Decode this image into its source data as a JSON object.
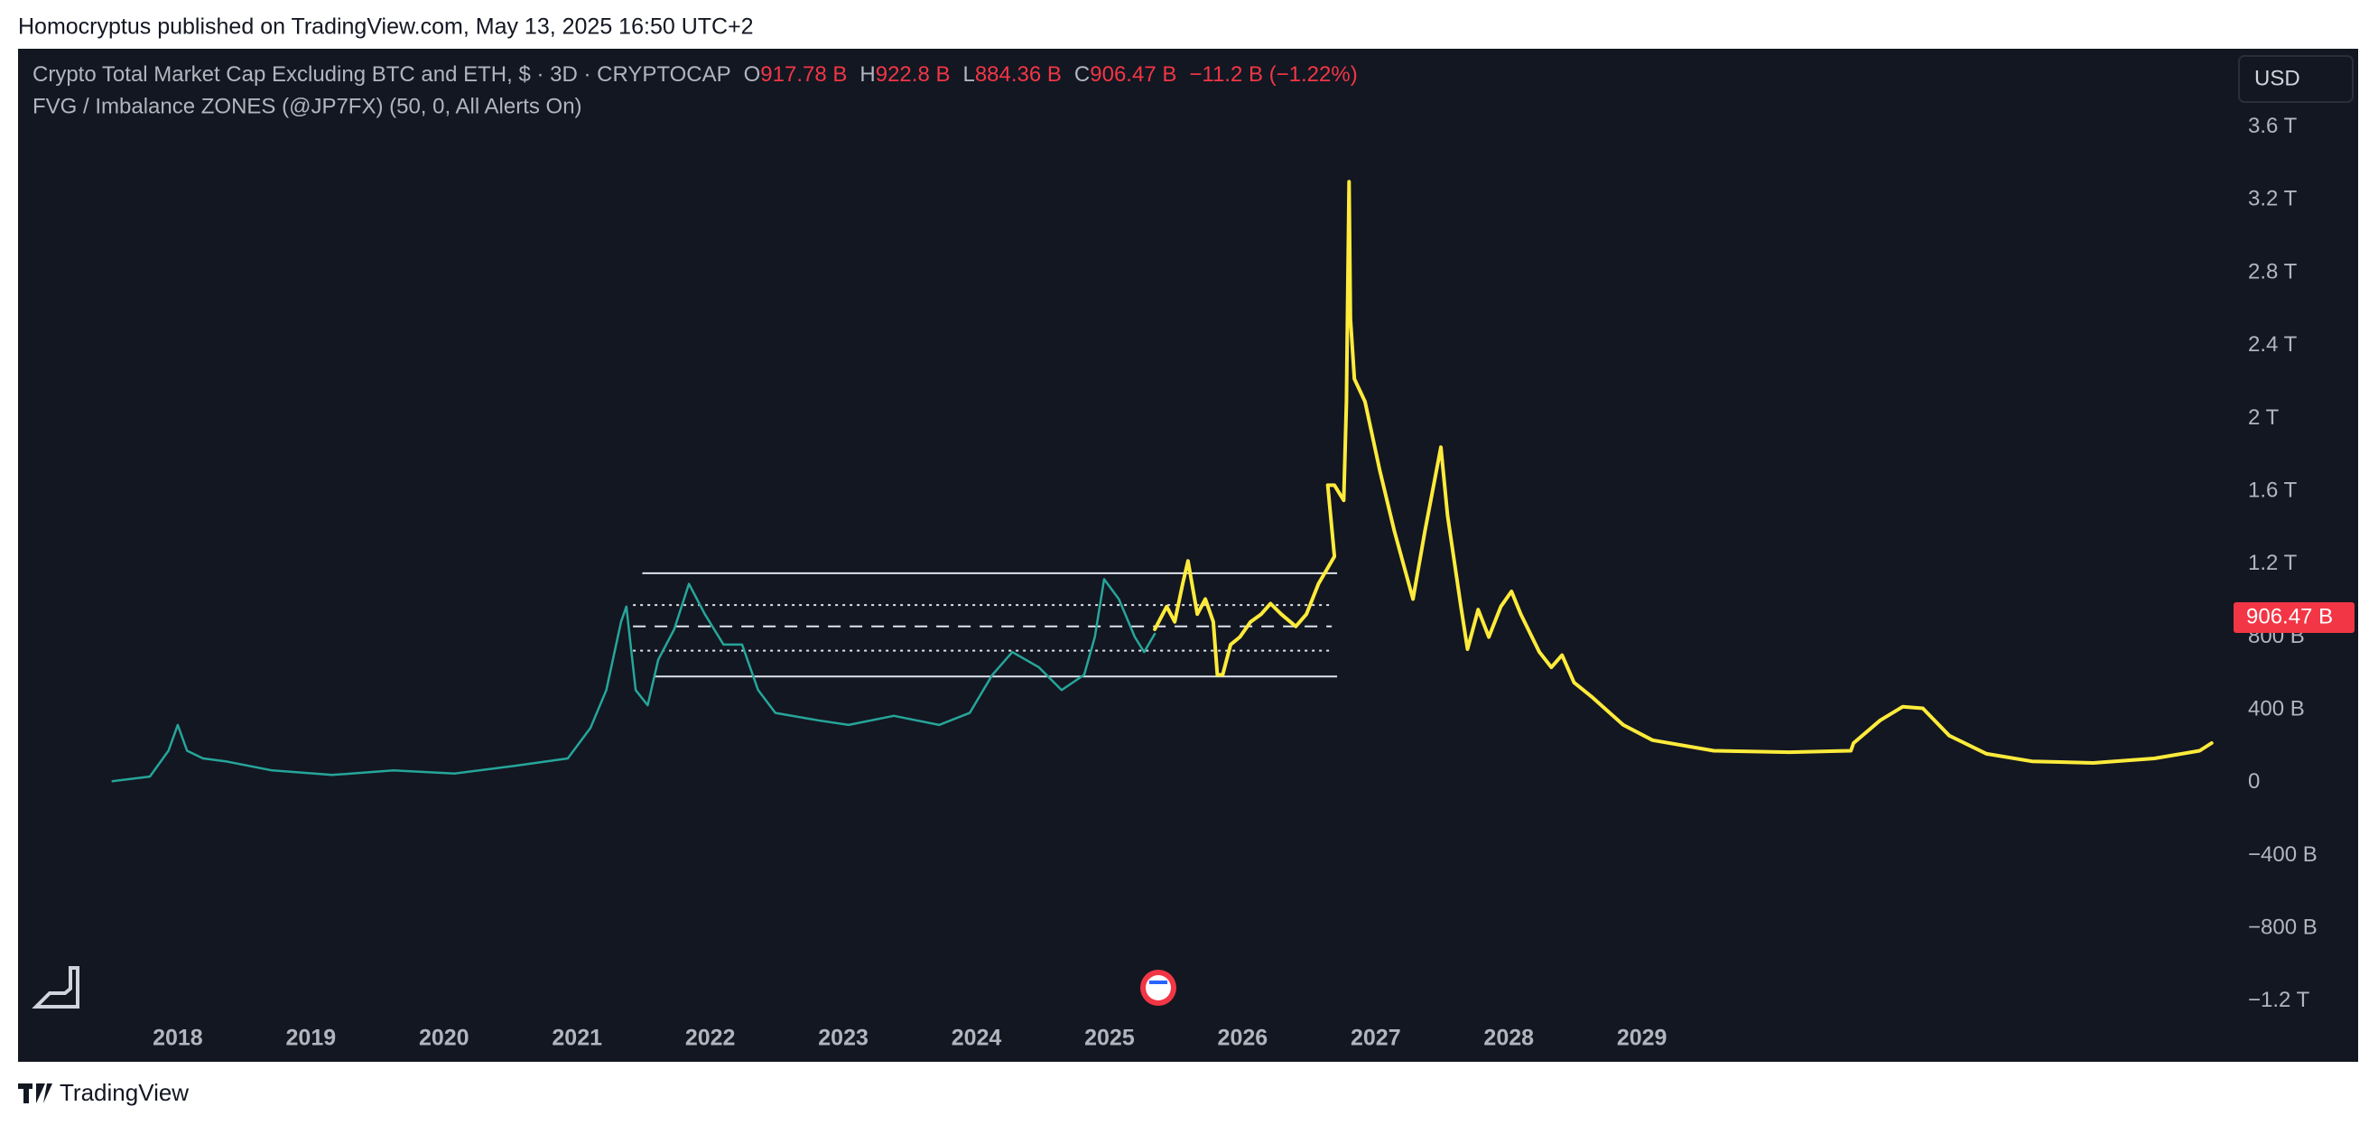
{
  "header": {
    "published": "Homocryptus published on TradingView.com, May 13, 2025 16:50 UTC+2",
    "brand": "TradingView"
  },
  "chart_data": {
    "type": "line",
    "title": "Crypto Total Market Cap Excluding BTC and ETH, $ · 3D · CRYPTOCAP",
    "indicator": "FVG / Imbalance ZONES (@JP7FX) (50, 0, All Alerts On)",
    "currency": "USD",
    "ohlc": {
      "labels": [
        "O",
        "H",
        "L",
        "C"
      ],
      "values": [
        917.78,
        922.8,
        884.36,
        906.47
      ],
      "value_labels": [
        "917.78 B",
        "922.8 B",
        "884.36 B",
        "906.47 B"
      ]
    },
    "change": "−11.2 B (−1.22%)",
    "last_price": {
      "value": 906.47,
      "label": "906.47 B",
      "color": "#f23645"
    },
    "xlim": [
      2016.8,
      2033.35
    ],
    "xticks": [
      2018,
      2019,
      2020,
      2021,
      2022,
      2023,
      2024,
      2025,
      2026,
      2027,
      2028,
      2029
    ],
    "ylim": [
      -1300,
      4030
    ],
    "yticks": [
      {
        "value": 3600,
        "label": "3.6 T"
      },
      {
        "value": 3200,
        "label": "3.2 T"
      },
      {
        "value": 2800,
        "label": "2.8 T"
      },
      {
        "value": 2400,
        "label": "2.4 T"
      },
      {
        "value": 2000,
        "label": "2 T"
      },
      {
        "value": 1600,
        "label": "1.6 T"
      },
      {
        "value": 1200,
        "label": "1.2 T"
      },
      {
        "value": 800,
        "label": "800 B"
      },
      {
        "value": 400,
        "label": "400 B"
      },
      0,
      {
        "value": -400,
        "label": "−400 B"
      },
      {
        "value": -800,
        "label": "−800 B"
      },
      {
        "value": -1200,
        "label": "−1.2 T"
      }
    ],
    "grid": false,
    "series": [
      {
        "color": "#26a69a",
        "x": [
          2017.51,
          2017.79,
          2017.93,
          2018.0,
          2018.07,
          2018.19,
          2018.36,
          2018.71,
          2019.16,
          2019.62,
          2020.08,
          2020.53,
          2020.93,
          2021.1,
          2021.22,
          2021.33,
          2021.37,
          2021.44,
          2021.53,
          2021.61,
          2021.73,
          2021.84,
          2021.96,
          2022.1,
          2022.24,
          2022.36,
          2022.49,
          2022.81,
          2023.04,
          2023.38,
          2023.72,
          2023.95,
          2024.12,
          2024.27,
          2024.47,
          2024.64,
          2024.81,
          2024.89,
          2024.96,
          2025.07,
          2025.19,
          2025.26,
          2025.34
        ],
        "values": [
          8,
          33,
          175,
          317,
          175,
          133,
          117,
          67,
          42,
          67,
          50,
          92,
          133,
          300,
          508,
          883,
          967,
          508,
          425,
          675,
          842,
          1092,
          925,
          758,
          758,
          508,
          383,
          342,
          317,
          367,
          317,
          383,
          592,
          717,
          633,
          508,
          592,
          800,
          1117,
          1008,
          800,
          717,
          817
        ]
      },
      {
        "color": "#ffeb3b",
        "x": [
          2025.34,
          2025.43,
          2025.49,
          2025.55,
          2025.59,
          2025.66,
          2025.72,
          2025.78,
          2025.81,
          2025.85,
          2025.91,
          2025.98,
          2026.06,
          2026.14,
          2026.21,
          2026.29,
          2026.4,
          2026.48,
          2026.57,
          2026.67,
          2026.69,
          2026.64,
          2026.69,
          2026.76,
          2026.78,
          2026.8,
          2026.81,
          2026.84,
          2026.92,
          2027.03,
          2027.14,
          2027.28,
          2027.37,
          2027.49,
          2027.54,
          2027.64,
          2027.69,
          2027.77,
          2027.85,
          2027.94,
          2028.02,
          2028.09,
          2028.23,
          2028.32,
          2028.4,
          2028.49,
          2028.63,
          2028.86,
          2029.08,
          2029.54,
          2030.11,
          2030.57,
          2030.59,
          2030.79,
          2030.96,
          2031.11,
          2031.31,
          2031.59,
          2031.93,
          2032.39,
          2032.85,
          2033.19,
          2033.28
        ],
        "values": [
          842,
          967,
          883,
          1092,
          1217,
          925,
          1008,
          883,
          592,
          592,
          758,
          800,
          883,
          925,
          983,
          925,
          858,
          925,
          1092,
          1217,
          1242,
          1633,
          1633,
          1550,
          2092,
          3300,
          2550,
          2217,
          2092,
          1717,
          1383,
          1008,
          1383,
          1842,
          1467,
          967,
          733,
          950,
          800,
          967,
          1050,
          925,
          717,
          633,
          700,
          550,
          467,
          317,
          233,
          175,
          167,
          175,
          217,
          342,
          417,
          408,
          258,
          158,
          117,
          108,
          133,
          175,
          217
        ]
      }
    ],
    "levels": [
      {
        "value": 1150,
        "x": [
          2021.49,
          2026.71
        ],
        "style": "solid"
      },
      {
        "value": 975,
        "x": [
          2021.42,
          2026.67
        ],
        "style": "dotted"
      },
      {
        "value": 858,
        "x": [
          2021.42,
          2026.67
        ],
        "style": "dashed"
      },
      {
        "value": 725,
        "x": [
          2021.42,
          2026.67
        ],
        "style": "dotted"
      },
      {
        "value": 583,
        "x": [
          2021.58,
          2026.71
        ],
        "style": "solid"
      }
    ]
  }
}
